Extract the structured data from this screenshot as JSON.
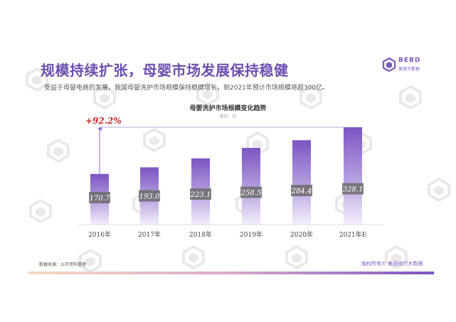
{
  "header": {
    "title": "规模持续扩张，母婴市场发展保持稳健",
    "subtitle": "受益于母婴电商的发展，我国母婴洗护市场规模保持稳健增长，到2021年预计市场规模将超300亿。"
  },
  "logo": {
    "name": "BEBD",
    "cn_name": "美丽大数据",
    "icon": "bebd-logo-icon"
  },
  "watermark": {
    "text": "BEBD 美丽大数据",
    "icon": "bebd-watermark-icon"
  },
  "chart_data": {
    "type": "bar",
    "title": "母婴洗护市场规模变化趋势",
    "unit_label": "单位：亿",
    "categories": [
      "2016年",
      "2017年",
      "2018年",
      "2019年",
      "2020年",
      "2021年E"
    ],
    "values": [
      170.7,
      193.0,
      223.1,
      258.5,
      284.4,
      328.1
    ],
    "value_labels": [
      "170.7",
      "193.0",
      "223.1",
      "258.5",
      "284.4",
      "328.1"
    ],
    "growth_annotation": "+92.2%",
    "xlabel": "",
    "ylabel": "",
    "ylim": [
      0,
      330
    ],
    "grid": false,
    "legend": "none",
    "colors": {
      "bar_top": "#7b55c2",
      "bar_bottom": "#f1ecfa",
      "label_bg": "#6b6b6b",
      "annotation": "#c62828",
      "axis": "#dddddd"
    }
  },
  "footer": {
    "source": "数据来源：公开资料整理",
    "copyright": "版权所有© 美丽修行大数据"
  }
}
